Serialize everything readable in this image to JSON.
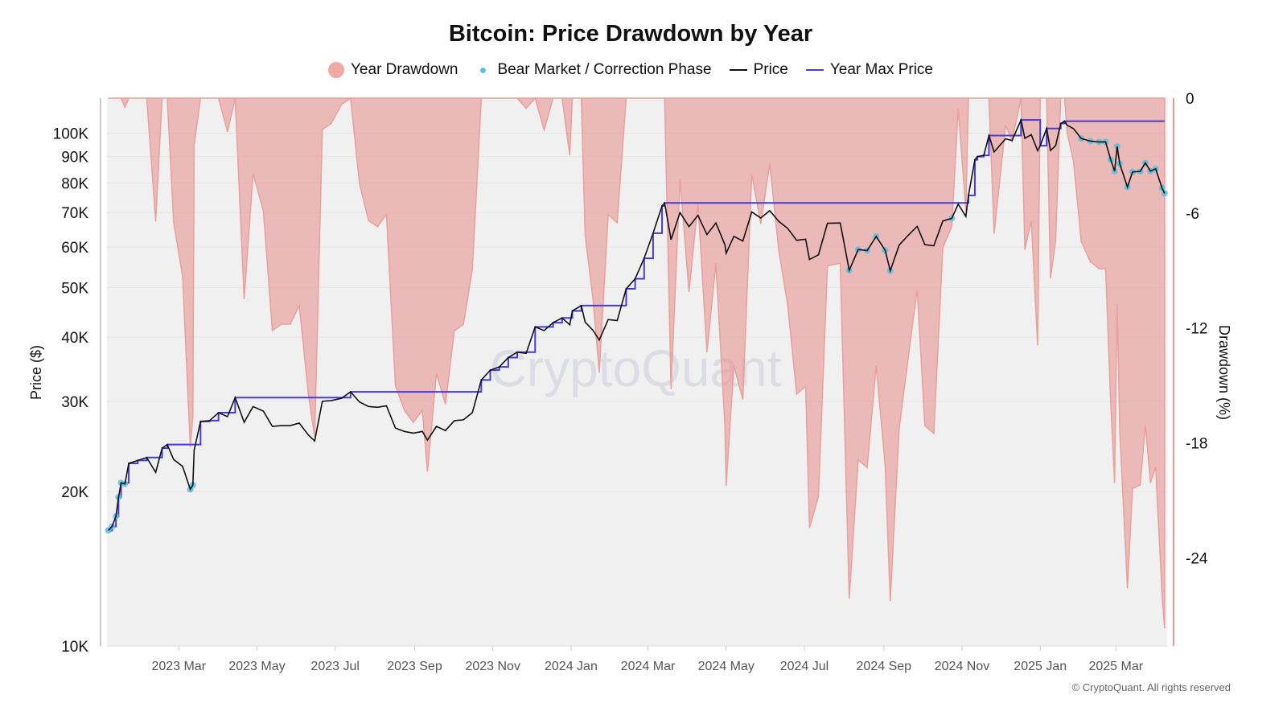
{
  "chart_data": {
    "type": "line",
    "title": "Bitcoin: Price Drawdown by Year",
    "legend": [
      {
        "label": "Year Drawdown",
        "color": "#f0a8a4",
        "marker": "circle"
      },
      {
        "label": "Bear Market / Correction Phase",
        "color": "#5bc0e0",
        "marker": "dot"
      },
      {
        "label": "Price",
        "color": "#111111",
        "marker": "line"
      },
      {
        "label": "Year Max Price",
        "color": "#4a3ad6",
        "marker": "line"
      }
    ],
    "legend_placement": "top-center",
    "y_left": {
      "label": "Price ($)",
      "scale": "log",
      "range": [
        10000,
        117000
      ],
      "ticks": [
        10000,
        20000,
        30000,
        40000,
        50000,
        60000,
        70000,
        80000,
        90000,
        100000
      ],
      "tick_labels": [
        "10K",
        "20K",
        "30K",
        "40K",
        "50K",
        "60K",
        "70K",
        "80K",
        "90K",
        "100K"
      ]
    },
    "y_right": {
      "label": "Drawdown (%)",
      "range": [
        -28.6,
        0
      ],
      "ticks": [
        0,
        -6,
        -12,
        -18,
        -24
      ],
      "tick_labels": [
        "0",
        "-6",
        "-12",
        "-18",
        "-24"
      ]
    },
    "x_axis": {
      "range": [
        "2023-01-04",
        "2025-04-10"
      ],
      "ticks": [
        "2023-03-01",
        "2023-05-01",
        "2023-07-01",
        "2023-09-01",
        "2023-11-01",
        "2024-01-01",
        "2024-03-01",
        "2024-05-01",
        "2024-07-01",
        "2024-09-01",
        "2024-11-01",
        "2025-01-01",
        "2025-03-01"
      ],
      "tick_labels": [
        "2023 Mar",
        "2023 May",
        "2023 Jul",
        "2023 Sep",
        "2023 Nov",
        "2024 Jan",
        "2024 Mar",
        "2024 May",
        "2024 Jul",
        "2024 Sep",
        "2024 Nov",
        "2025 Jan",
        "2025 Mar"
      ]
    },
    "grid": true,
    "price": [
      [
        "2023-01-05",
        16800
      ],
      [
        "2023-01-08",
        17100
      ],
      [
        "2023-01-11",
        17900
      ],
      [
        "2023-01-13",
        19500
      ],
      [
        "2023-01-15",
        20800
      ],
      [
        "2023-01-18",
        20700
      ],
      [
        "2023-01-21",
        22700
      ],
      [
        "2023-01-28",
        23000
      ],
      [
        "2023-02-04",
        23300
      ],
      [
        "2023-02-11",
        21800
      ],
      [
        "2023-02-16",
        24300
      ],
      [
        "2023-02-20",
        24700
      ],
      [
        "2023-02-25",
        23100
      ],
      [
        "2023-03-04",
        22400
      ],
      [
        "2023-03-10",
        20200
      ],
      [
        "2023-03-12",
        20600
      ],
      [
        "2023-03-13",
        24100
      ],
      [
        "2023-03-18",
        27400
      ],
      [
        "2023-03-25",
        27500
      ],
      [
        "2023-04-01",
        28500
      ],
      [
        "2023-04-08",
        28000
      ],
      [
        "2023-04-14",
        30500
      ],
      [
        "2023-04-21",
        27300
      ],
      [
        "2023-04-28",
        29300
      ],
      [
        "2023-05-06",
        28700
      ],
      [
        "2023-05-13",
        26800
      ],
      [
        "2023-05-20",
        26900
      ],
      [
        "2023-05-27",
        26900
      ],
      [
        "2023-06-03",
        27200
      ],
      [
        "2023-06-10",
        25800
      ],
      [
        "2023-06-15",
        25100
      ],
      [
        "2023-06-21",
        30000
      ],
      [
        "2023-06-28",
        30100
      ],
      [
        "2023-07-06",
        30400
      ],
      [
        "2023-07-13",
        31300
      ],
      [
        "2023-07-20",
        29900
      ],
      [
        "2023-07-27",
        29300
      ],
      [
        "2023-08-03",
        29200
      ],
      [
        "2023-08-10",
        29400
      ],
      [
        "2023-08-17",
        26600
      ],
      [
        "2023-08-24",
        26200
      ],
      [
        "2023-08-31",
        26000
      ],
      [
        "2023-09-07",
        26200
      ],
      [
        "2023-09-11",
        25200
      ],
      [
        "2023-09-18",
        26800
      ],
      [
        "2023-09-25",
        26300
      ],
      [
        "2023-10-02",
        27500
      ],
      [
        "2023-10-09",
        27600
      ],
      [
        "2023-10-16",
        28500
      ],
      [
        "2023-10-23",
        33000
      ],
      [
        "2023-10-30",
        34500
      ],
      [
        "2023-11-06",
        35000
      ],
      [
        "2023-11-13",
        36500
      ],
      [
        "2023-11-20",
        37400
      ],
      [
        "2023-11-27",
        37200
      ],
      [
        "2023-12-04",
        41900
      ],
      [
        "2023-12-11",
        41200
      ],
      [
        "2023-12-18",
        42700
      ],
      [
        "2023-12-25",
        43600
      ],
      [
        "2023-12-31",
        42300
      ],
      [
        "2024-01-02",
        45000
      ],
      [
        "2024-01-09",
        46100
      ],
      [
        "2024-01-12",
        42800
      ],
      [
        "2024-01-18",
        41300
      ],
      [
        "2024-01-23",
        39500
      ],
      [
        "2024-01-30",
        43300
      ],
      [
        "2024-02-06",
        43100
      ],
      [
        "2024-02-13",
        49700
      ],
      [
        "2024-02-20",
        52000
      ],
      [
        "2024-02-27",
        57000
      ],
      [
        "2024-03-05",
        63800
      ],
      [
        "2024-03-12",
        72100
      ],
      [
        "2024-03-14",
        73100
      ],
      [
        "2024-03-19",
        62000
      ],
      [
        "2024-03-26",
        70000
      ],
      [
        "2024-04-02",
        65700
      ],
      [
        "2024-04-09",
        69100
      ],
      [
        "2024-04-16",
        63400
      ],
      [
        "2024-04-23",
        66800
      ],
      [
        "2024-04-30",
        60600
      ],
      [
        "2024-05-01",
        58300
      ],
      [
        "2024-05-07",
        62900
      ],
      [
        "2024-05-14",
        61600
      ],
      [
        "2024-05-21",
        70200
      ],
      [
        "2024-05-28",
        68300
      ],
      [
        "2024-06-04",
        70600
      ],
      [
        "2024-06-11",
        67300
      ],
      [
        "2024-06-18",
        65200
      ],
      [
        "2024-06-25",
        61800
      ],
      [
        "2024-07-02",
        62100
      ],
      [
        "2024-07-05",
        56700
      ],
      [
        "2024-07-12",
        57900
      ],
      [
        "2024-07-19",
        66700
      ],
      [
        "2024-07-29",
        66800
      ],
      [
        "2024-08-05",
        54000
      ],
      [
        "2024-08-12",
        59300
      ],
      [
        "2024-08-19",
        59000
      ],
      [
        "2024-08-26",
        62900
      ],
      [
        "2024-09-02",
        59100
      ],
      [
        "2024-09-06",
        53900
      ],
      [
        "2024-09-13",
        60500
      ],
      [
        "2024-09-20",
        63200
      ],
      [
        "2024-09-27",
        65800
      ],
      [
        "2024-10-03",
        60600
      ],
      [
        "2024-10-10",
        60300
      ],
      [
        "2024-10-17",
        67400
      ],
      [
        "2024-10-24",
        68200
      ],
      [
        "2024-10-29",
        72700
      ],
      [
        "2024-11-04",
        68800
      ],
      [
        "2024-11-06",
        75600
      ],
      [
        "2024-11-11",
        88700
      ],
      [
        "2024-11-13",
        90000
      ],
      [
        "2024-11-18",
        90500
      ],
      [
        "2024-11-22",
        98900
      ],
      [
        "2024-11-26",
        91900
      ],
      [
        "2024-12-05",
        97500
      ],
      [
        "2024-12-10",
        96700
      ],
      [
        "2024-12-17",
        106100
      ],
      [
        "2024-12-20",
        97700
      ],
      [
        "2024-12-25",
        99300
      ],
      [
        "2024-12-30",
        92400
      ],
      [
        "2025-01-01",
        94500
      ],
      [
        "2025-01-06",
        102100
      ],
      [
        "2025-01-09",
        92500
      ],
      [
        "2025-01-13",
        94500
      ],
      [
        "2025-01-17",
        104400
      ],
      [
        "2025-01-20",
        105500
      ],
      [
        "2025-01-22",
        103600
      ],
      [
        "2025-01-27",
        102000
      ],
      [
        "2025-02-02",
        97600
      ],
      [
        "2025-02-09",
        96500
      ],
      [
        "2025-02-16",
        96100
      ],
      [
        "2025-02-21",
        96100
      ],
      [
        "2025-02-25",
        88700
      ],
      [
        "2025-02-28",
        84300
      ],
      [
        "2025-03-02",
        94200
      ],
      [
        "2025-03-04",
        87200
      ],
      [
        "2025-03-10",
        78500
      ],
      [
        "2025-03-14",
        84000
      ],
      [
        "2025-03-20",
        84200
      ],
      [
        "2025-03-24",
        87500
      ],
      [
        "2025-03-28",
        84300
      ],
      [
        "2025-04-01",
        85200
      ],
      [
        "2025-04-06",
        78200
      ],
      [
        "2025-04-08",
        76300
      ]
    ],
    "bear_phases": [
      [
        "2023-01-05",
        "2023-01-18"
      ],
      [
        "2023-03-09",
        "2023-03-12"
      ],
      [
        "2024-08-04",
        "2024-09-10"
      ],
      [
        "2024-10-20",
        "2024-10-26"
      ],
      [
        "2025-02-02",
        "2025-04-08"
      ]
    ]
  },
  "watermark": "CryptoQuant",
  "copyright": "© CryptoQuant. All rights reserved"
}
